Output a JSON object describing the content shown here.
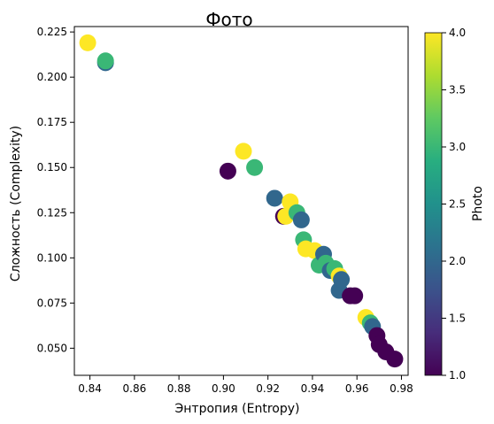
{
  "chart_data": {
    "type": "scatter",
    "title": "Фото",
    "xlabel": "Энтропия (Entropy)",
    "ylabel": "Сложность (Complexity)",
    "xlim": [
      0.833,
      0.983
    ],
    "ylim": [
      0.035,
      0.228
    ],
    "x_ticks": [
      0.84,
      0.86,
      0.88,
      0.9,
      0.92,
      0.94,
      0.96,
      0.98
    ],
    "x_tick_labels": [
      "0.84",
      "0.86",
      "0.88",
      "0.90",
      "0.92",
      "0.94",
      "0.96",
      "0.98"
    ],
    "y_ticks": [
      0.05,
      0.075,
      0.1,
      0.125,
      0.15,
      0.175,
      0.2,
      0.225
    ],
    "y_tick_labels": [
      "0.050",
      "0.075",
      "0.100",
      "0.125",
      "0.150",
      "0.175",
      "0.200",
      "0.225"
    ],
    "grid": false,
    "colorbar": {
      "label": "Photo",
      "colormap": "viridis",
      "range": [
        1.0,
        4.0
      ],
      "ticks": [
        1.0,
        1.5,
        2.0,
        2.5,
        3.0,
        3.5,
        4.0
      ],
      "tick_labels": [
        "1.0",
        "1.5",
        "2.0",
        "2.5",
        "3.0",
        "3.5",
        "4.0"
      ]
    },
    "points": [
      {
        "x": 0.839,
        "y": 0.219,
        "c": 4
      },
      {
        "x": 0.847,
        "y": 0.208,
        "c": 2
      },
      {
        "x": 0.847,
        "y": 0.209,
        "c": 3
      },
      {
        "x": 0.902,
        "y": 0.148,
        "c": 1
      },
      {
        "x": 0.909,
        "y": 0.159,
        "c": 4
      },
      {
        "x": 0.914,
        "y": 0.15,
        "c": 3
      },
      {
        "x": 0.923,
        "y": 0.133,
        "c": 2
      },
      {
        "x": 0.927,
        "y": 0.123,
        "c": 1
      },
      {
        "x": 0.928,
        "y": 0.123,
        "c": 4
      },
      {
        "x": 0.93,
        "y": 0.131,
        "c": 4
      },
      {
        "x": 0.933,
        "y": 0.125,
        "c": 3
      },
      {
        "x": 0.935,
        "y": 0.121,
        "c": 2
      },
      {
        "x": 0.936,
        "y": 0.11,
        "c": 3
      },
      {
        "x": 0.937,
        "y": 0.105,
        "c": 4
      },
      {
        "x": 0.941,
        "y": 0.104,
        "c": 4
      },
      {
        "x": 0.943,
        "y": 0.096,
        "c": 3
      },
      {
        "x": 0.945,
        "y": 0.102,
        "c": 2
      },
      {
        "x": 0.946,
        "y": 0.097,
        "c": 3
      },
      {
        "x": 0.948,
        "y": 0.093,
        "c": 2
      },
      {
        "x": 0.95,
        "y": 0.094,
        "c": 3
      },
      {
        "x": 0.952,
        "y": 0.09,
        "c": 4
      },
      {
        "x": 0.952,
        "y": 0.082,
        "c": 2
      },
      {
        "x": 0.953,
        "y": 0.088,
        "c": 2
      },
      {
        "x": 0.957,
        "y": 0.079,
        "c": 1
      },
      {
        "x": 0.959,
        "y": 0.079,
        "c": 1
      },
      {
        "x": 0.964,
        "y": 0.067,
        "c": 4
      },
      {
        "x": 0.966,
        "y": 0.064,
        "c": 3
      },
      {
        "x": 0.967,
        "y": 0.062,
        "c": 2
      },
      {
        "x": 0.969,
        "y": 0.057,
        "c": 1
      },
      {
        "x": 0.97,
        "y": 0.052,
        "c": 1
      },
      {
        "x": 0.973,
        "y": 0.048,
        "c": 1
      },
      {
        "x": 0.977,
        "y": 0.044,
        "c": 1
      }
    ]
  }
}
